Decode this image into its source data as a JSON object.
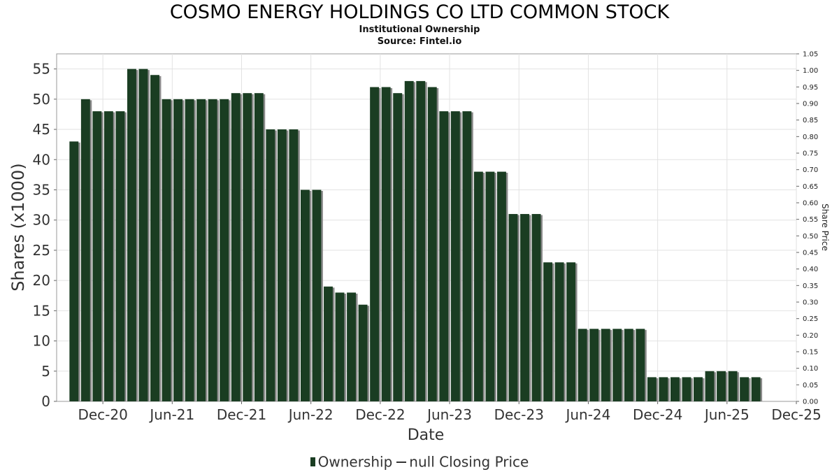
{
  "title": "COSMO ENERGY HOLDINGS CO LTD COMMON STOCK",
  "subtitle1": "Institutional Ownership",
  "subtitle2": "Source: Fintel.io",
  "legend": {
    "series1": "Ownership",
    "series2": "null Closing Price"
  },
  "colors": {
    "bar": "#1a3d22",
    "bar_shadow": "#8a8a8a",
    "grid": "#e2e2e2"
  },
  "chart_data": {
    "type": "bar",
    "xlabel": "Date",
    "ylabel": "Shares (x1000)",
    "y2label": "Share Price",
    "ylim": [
      0,
      57.5
    ],
    "y2lim": [
      0,
      1.05
    ],
    "yticks": [
      "0",
      "5",
      "10",
      "15",
      "20",
      "25",
      "30",
      "35",
      "40",
      "45",
      "50",
      "55"
    ],
    "y2ticks": [
      "0.00",
      "0.05",
      "0.10",
      "0.15",
      "0.20",
      "0.25",
      "0.30",
      "0.35",
      "0.40",
      "0.45",
      "0.50",
      "0.55",
      "0.60",
      "0.65",
      "0.70",
      "0.75",
      "0.80",
      "0.85",
      "0.90",
      "0.95",
      "1.00",
      "1.05"
    ],
    "xticks": [
      "Dec-20",
      "Jun-21",
      "Dec-21",
      "Jun-22",
      "Dec-22",
      "Jun-23",
      "Dec-23",
      "Jun-24",
      "Dec-24",
      "Jun-25",
      "Dec-25"
    ],
    "xrange_months": [
      -4,
      60
    ],
    "grid": true,
    "legend_position": "bottom",
    "series": [
      {
        "name": "Ownership",
        "months_from_dec20": [
          -2.5,
          -1.5,
          -0.5,
          0.5,
          1.5,
          2.5,
          3.5,
          4.5,
          5.5,
          6.5,
          7.5,
          8.5,
          9.5,
          10.5,
          11.5,
          12.5,
          13.5,
          14.5,
          15.5,
          16.5,
          17.5,
          18.5,
          19.5,
          20.5,
          21.5,
          22.5,
          23.5,
          24.5,
          25.5,
          26.5,
          27.5,
          28.5,
          29.5,
          30.5,
          31.5,
          32.5,
          33.5,
          34.5,
          35.5,
          36.5,
          37.5,
          38.5,
          39.5,
          40.5,
          41.5,
          42.5,
          43.5,
          44.5,
          45.5,
          46.5,
          47.5,
          48.5,
          49.5,
          50.5,
          51.5,
          52.5,
          53.5,
          54.5,
          55.5,
          56.5
        ],
        "values": [
          43,
          50,
          48,
          48,
          48,
          55,
          55,
          54,
          50,
          50,
          50,
          50,
          50,
          50,
          51,
          51,
          51,
          45,
          45,
          45,
          35,
          35,
          19,
          18,
          18,
          16,
          52,
          52,
          51,
          53,
          53,
          52,
          48,
          48,
          48,
          38,
          38,
          38,
          31,
          31,
          31,
          23,
          23,
          23,
          12,
          12,
          12,
          12,
          12,
          12,
          4,
          4,
          4,
          4,
          4,
          5,
          5,
          5,
          4,
          4
        ]
      }
    ]
  }
}
